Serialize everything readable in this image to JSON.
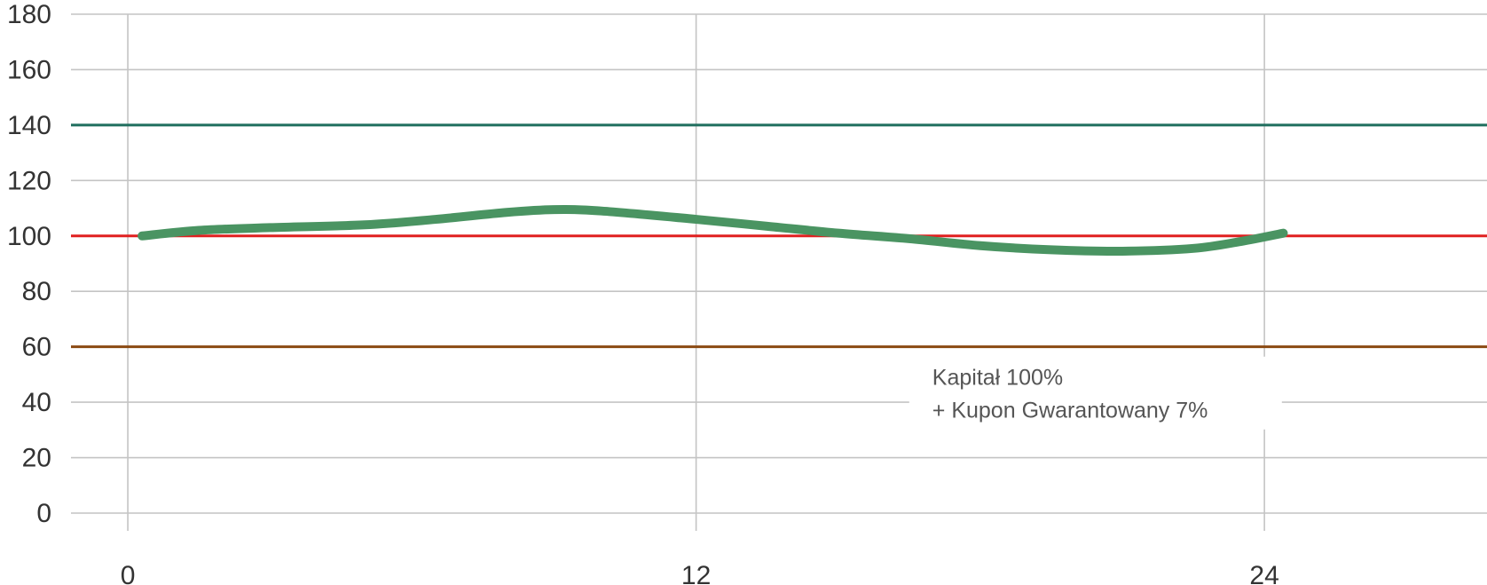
{
  "chart_data": {
    "type": "line",
    "x_ticks": [
      0,
      12,
      24
    ],
    "y_ticks": [
      0,
      20,
      40,
      60,
      80,
      100,
      120,
      140,
      160,
      180
    ],
    "xlim": [
      -1.2,
      28.7
    ],
    "ylim": [
      0,
      180
    ],
    "grid": true,
    "reference_lines": [
      {
        "y": 140,
        "color": "#1f6e5e"
      },
      {
        "y": 100,
        "color": "#e02020"
      },
      {
        "y": 60,
        "color": "#8b4a12"
      }
    ],
    "series": [
      {
        "color": "#4a9462",
        "x": [
          0.3,
          1.5,
          3,
          5,
          6.5,
          8,
          9,
          10,
          12,
          13.5,
          15,
          16.5,
          18,
          19.5,
          21,
          22.5,
          23.5,
          24.4
        ],
        "y": [
          100,
          102,
          103,
          104,
          106,
          108.5,
          109.5,
          109,
          106,
          103.5,
          101,
          99,
          96.5,
          95,
          94.5,
          95.5,
          98,
          101
        ]
      }
    ],
    "annotations": [
      {
        "line1": "Kapitał 100%",
        "line2": "+ Kupon Gwarantowany 7%",
        "x": 16.5,
        "y": 43
      }
    ]
  }
}
